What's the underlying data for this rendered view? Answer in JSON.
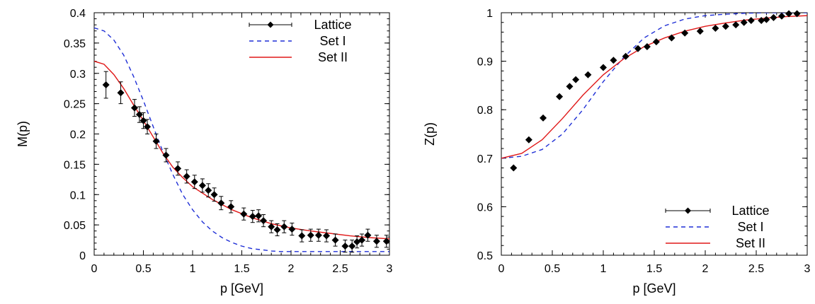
{
  "chart_data": [
    {
      "type": "line",
      "xlabel": "p [GeV]",
      "ylabel": "M(p)",
      "xlim": [
        0,
        3
      ],
      "ylim": [
        0,
        0.4
      ],
      "xticks": [
        "0",
        "0.5",
        "1",
        "1.5",
        "2",
        "2.5",
        "3"
      ],
      "yticks": [
        "0",
        "0.05",
        "0.1",
        "0.15",
        "0.2",
        "0.25",
        "0.3",
        "0.35",
        "0.4"
      ],
      "legend_position": "top-right",
      "grid": false,
      "series": [
        {
          "name": "Lattice",
          "style": "points-with-errorbars",
          "color": "#000000",
          "x": [
            0.12,
            0.27,
            0.41,
            0.46,
            0.5,
            0.54,
            0.63,
            0.73,
            0.85,
            0.94,
            1.02,
            1.1,
            1.16,
            1.22,
            1.29,
            1.39,
            1.52,
            1.61,
            1.67,
            1.72,
            1.8,
            1.86,
            1.93,
            2.01,
            2.11,
            2.2,
            2.28,
            2.36,
            2.45,
            2.55,
            2.62,
            2.67,
            2.72,
            2.78,
            2.87,
            2.97
          ],
          "y": [
            0.281,
            0.268,
            0.243,
            0.232,
            0.222,
            0.212,
            0.188,
            0.165,
            0.143,
            0.13,
            0.121,
            0.115,
            0.107,
            0.1,
            0.086,
            0.08,
            0.068,
            0.064,
            0.065,
            0.057,
            0.047,
            0.042,
            0.047,
            0.043,
            0.032,
            0.033,
            0.033,
            0.032,
            0.025,
            0.015,
            0.015,
            0.022,
            0.025,
            0.033,
            0.023,
            0.023
          ],
          "err": [
            0.022,
            0.018,
            0.014,
            0.013,
            0.013,
            0.012,
            0.012,
            0.011,
            0.011,
            0.011,
            0.011,
            0.011,
            0.011,
            0.011,
            0.011,
            0.01,
            0.01,
            0.01,
            0.01,
            0.01,
            0.01,
            0.01,
            0.01,
            0.01,
            0.01,
            0.01,
            0.01,
            0.01,
            0.01,
            0.01,
            0.01,
            0.01,
            0.01,
            0.01,
            0.01,
            0.01
          ]
        },
        {
          "name": "Set I",
          "style": "dashed",
          "color": "#1f2fd6",
          "x": [
            0,
            0.1,
            0.2,
            0.3,
            0.4,
            0.5,
            0.6,
            0.7,
            0.8,
            0.9,
            1.0,
            1.1,
            1.2,
            1.3,
            1.4,
            1.5,
            1.6,
            1.7,
            1.8,
            1.9,
            2.0,
            2.2,
            2.4,
            2.6,
            2.8,
            3.0
          ],
          "y": [
            0.375,
            0.37,
            0.355,
            0.33,
            0.295,
            0.255,
            0.212,
            0.17,
            0.133,
            0.1,
            0.075,
            0.055,
            0.04,
            0.029,
            0.021,
            0.015,
            0.011,
            0.009,
            0.007,
            0.006,
            0.006,
            0.006,
            0.006,
            0.006,
            0.006,
            0.006
          ]
        },
        {
          "name": "Set II",
          "style": "solid",
          "color": "#e01818",
          "x": [
            0,
            0.1,
            0.2,
            0.3,
            0.4,
            0.5,
            0.6,
            0.7,
            0.8,
            0.9,
            1.0,
            1.2,
            1.4,
            1.6,
            1.8,
            2.0,
            2.2,
            2.4,
            2.6,
            2.8,
            3.0
          ],
          "y": [
            0.32,
            0.315,
            0.298,
            0.275,
            0.248,
            0.222,
            0.195,
            0.168,
            0.145,
            0.128,
            0.113,
            0.092,
            0.075,
            0.062,
            0.052,
            0.045,
            0.04,
            0.036,
            0.032,
            0.029,
            0.027
          ]
        }
      ]
    },
    {
      "type": "line",
      "xlabel": "p [GeV]",
      "ylabel": "Z(p)",
      "xlim": [
        0,
        3
      ],
      "ylim": [
        0.5,
        1
      ],
      "xticks": [
        "0",
        "0.5",
        "1",
        "1.5",
        "2",
        "2.5",
        "3"
      ],
      "yticks": [
        "0.5",
        "0.6",
        "0.7",
        "0.8",
        "0.9",
        "1"
      ],
      "legend_position": "bottom-right",
      "grid": false,
      "series": [
        {
          "name": "Lattice",
          "style": "points-with-errorbars",
          "color": "#000000",
          "x": [
            0.12,
            0.27,
            0.41,
            0.57,
            0.67,
            0.73,
            0.85,
            1.0,
            1.1,
            1.22,
            1.34,
            1.43,
            1.52,
            1.67,
            1.8,
            1.95,
            2.1,
            2.2,
            2.3,
            2.38,
            2.45,
            2.55,
            2.6,
            2.67,
            2.75,
            2.82,
            2.9
          ],
          "y": [
            0.68,
            0.738,
            0.783,
            0.827,
            0.848,
            0.862,
            0.872,
            0.887,
            0.902,
            0.91,
            0.926,
            0.93,
            0.94,
            0.948,
            0.958,
            0.962,
            0.968,
            0.972,
            0.975,
            0.98,
            0.984,
            0.984,
            0.986,
            0.99,
            0.993,
            0.998,
            0.998
          ]
        },
        {
          "name": "Set I",
          "style": "dashed",
          "color": "#1f2fd6",
          "x": [
            0,
            0.2,
            0.4,
            0.6,
            0.8,
            1.0,
            1.2,
            1.4,
            1.6,
            1.8,
            2.0,
            2.2,
            2.4,
            2.6,
            2.8,
            3.0
          ],
          "y": [
            0.7,
            0.704,
            0.718,
            0.75,
            0.8,
            0.858,
            0.908,
            0.948,
            0.973,
            0.987,
            0.994,
            0.997,
            0.999,
            1.0,
            1.0,
            1.0
          ]
        },
        {
          "name": "Set II",
          "style": "solid",
          "color": "#e01818",
          "x": [
            0,
            0.2,
            0.4,
            0.6,
            0.8,
            1.0,
            1.2,
            1.4,
            1.6,
            1.8,
            2.0,
            2.2,
            2.4,
            2.6,
            2.8,
            3.0
          ],
          "y": [
            0.7,
            0.71,
            0.738,
            0.782,
            0.83,
            0.872,
            0.905,
            0.93,
            0.948,
            0.962,
            0.972,
            0.979,
            0.985,
            0.989,
            0.992,
            0.994
          ]
        }
      ]
    }
  ]
}
